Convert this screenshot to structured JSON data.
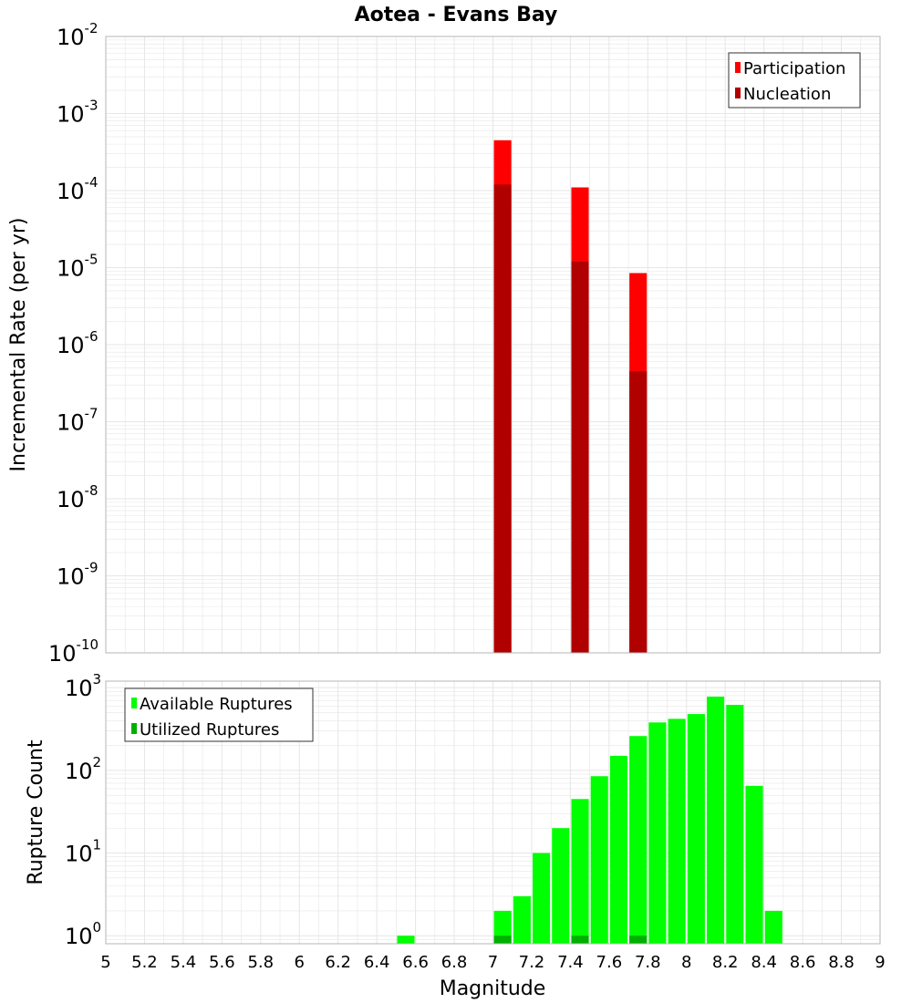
{
  "colors": {
    "participation": "#ff0000",
    "nucleation": "#b00000",
    "available": "#00ff00",
    "utilized": "#00b000",
    "grid": "#e6e6e6",
    "frame": "#b5b5b5"
  },
  "chart_data": [
    {
      "type": "bar",
      "title": "Aotea - Evans Bay",
      "xlabel": "Magnitude",
      "ylabel": "Incremental Rate (per yr)",
      "yscale": "log",
      "xlim": [
        5,
        9
      ],
      "ylim": [
        1e-10,
        0.01
      ],
      "y_tick_labels": [
        {
          "base": "10",
          "exp": "-10",
          "value": 1e-10
        },
        {
          "base": "10",
          "exp": "-9",
          "value": 1e-09
        },
        {
          "base": "10",
          "exp": "-8",
          "value": 1e-08
        },
        {
          "base": "10",
          "exp": "-7",
          "value": 1e-07
        },
        {
          "base": "10",
          "exp": "-6",
          "value": 1e-06
        },
        {
          "base": "10",
          "exp": "-5",
          "value": 1e-05
        },
        {
          "base": "10",
          "exp": "-4",
          "value": 0.0001
        },
        {
          "base": "10",
          "exp": "-3",
          "value": 0.001
        },
        {
          "base": "10",
          "exp": "-2",
          "value": 0.01
        }
      ],
      "legend": {
        "position": "top-right",
        "entries": [
          "Participation",
          "Nucleation"
        ]
      },
      "bar_width": 0.09,
      "series": [
        {
          "name": "Participation",
          "x": [
            7.05,
            7.45,
            7.75
          ],
          "values": [
            0.00045,
            0.00011,
            8.5e-06
          ]
        },
        {
          "name": "Nucleation",
          "x": [
            7.05,
            7.45,
            7.75
          ],
          "values": [
            0.00012,
            1.2e-05,
            4.5e-07
          ]
        }
      ]
    },
    {
      "type": "bar",
      "title": "",
      "xlabel": "Magnitude",
      "ylabel": "Rupture Count",
      "yscale": "log",
      "xlim": [
        5,
        9
      ],
      "ylim": [
        0.8,
        1200
      ],
      "y_tick_labels": [
        {
          "base": "10",
          "exp": "0",
          "value": 1
        },
        {
          "base": "10",
          "exp": "1",
          "value": 10
        },
        {
          "base": "10",
          "exp": "2",
          "value": 100
        },
        {
          "base": "10",
          "exp": "3",
          "value": 1000
        }
      ],
      "x_tick_labels": [
        "5",
        "5.2",
        "5.4",
        "5.6",
        "5.8",
        "6",
        "6.2",
        "6.4",
        "6.6",
        "6.8",
        "7",
        "7.2",
        "7.4",
        "7.6",
        "7.8",
        "8",
        "8.2",
        "8.4",
        "8.6",
        "8.8",
        "9"
      ],
      "legend": {
        "position": "top-left",
        "entries": [
          "Available Ruptures",
          "Utilized Ruptures"
        ]
      },
      "bar_width": 0.09,
      "series": [
        {
          "name": "Available Ruptures",
          "x": [
            6.55,
            7.05,
            7.15,
            7.25,
            7.35,
            7.45,
            7.55,
            7.65,
            7.75,
            7.85,
            7.95,
            8.05,
            8.15,
            8.25,
            8.35,
            8.45
          ],
          "values": [
            1,
            2,
            3,
            10,
            20,
            45,
            85,
            150,
            260,
            380,
            420,
            480,
            780,
            620,
            65,
            2
          ]
        },
        {
          "name": "Utilized Ruptures",
          "x": [
            7.05,
            7.45,
            7.75
          ],
          "values": [
            1,
            1,
            1
          ]
        }
      ]
    }
  ]
}
